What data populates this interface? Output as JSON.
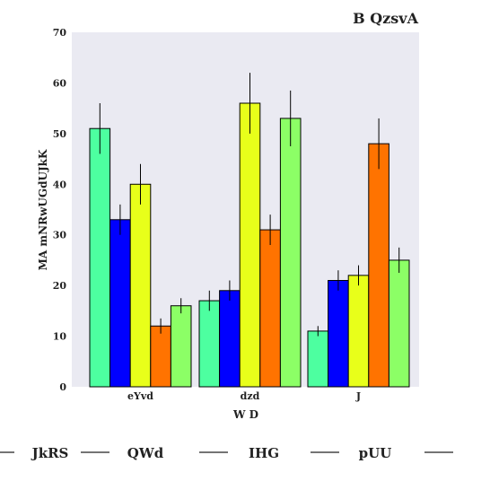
{
  "chart_data": {
    "type": "bar",
    "title": "B QzsvA",
    "xlabel": "W D",
    "ylabel": "MA mNRwUGdUJkK",
    "categories": [
      "eYvd",
      "dzd",
      "J"
    ],
    "ylim": [
      0,
      70
    ],
    "yticks": [
      0,
      10,
      20,
      30,
      40,
      50,
      60,
      70
    ],
    "grid": false,
    "legend_position": "bottom",
    "series": [
      {
        "name": "JkRS",
        "color": "#4dffa0",
        "values": [
          51,
          17,
          11
        ],
        "errors": [
          5,
          2,
          1
        ]
      },
      {
        "name": "QWd",
        "color": "#0000ff",
        "values": [
          33,
          19,
          21
        ],
        "errors": [
          3,
          2,
          2
        ]
      },
      {
        "name": "IHG",
        "color": "#e8ff1a",
        "values": [
          40,
          56,
          22
        ],
        "errors": [
          4,
          6,
          2
        ]
      },
      {
        "name": "pUU",
        "color": "#ff7300",
        "values": [
          12,
          31,
          48
        ],
        "errors": [
          1.5,
          3,
          5
        ]
      },
      {
        "name": "",
        "color": "#8cff66",
        "values": [
          16,
          53,
          25
        ],
        "errors": [
          1.5,
          5.5,
          2.5
        ]
      }
    ]
  }
}
